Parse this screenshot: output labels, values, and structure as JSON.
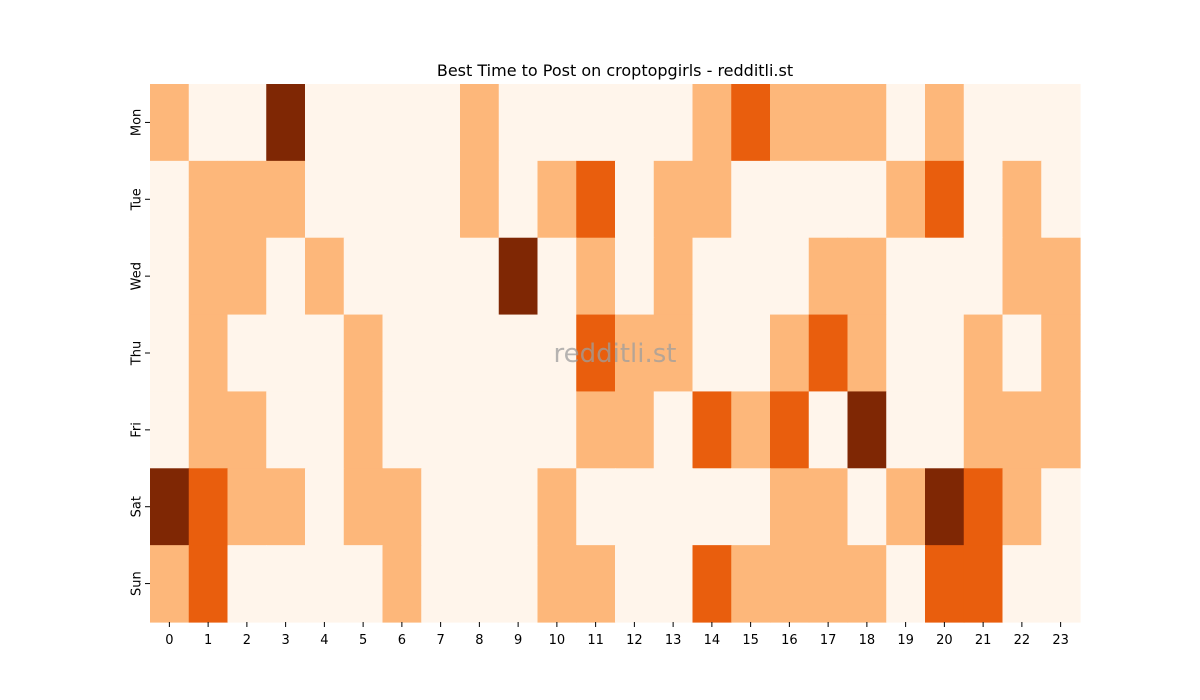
{
  "chart_data": {
    "type": "heatmap",
    "title": "Best Time to Post on croptopgirls - redditli.st",
    "watermark": "redditli.st",
    "x_labels": [
      "0",
      "1",
      "2",
      "3",
      "4",
      "5",
      "6",
      "7",
      "8",
      "9",
      "10",
      "11",
      "12",
      "13",
      "14",
      "15",
      "16",
      "17",
      "18",
      "19",
      "20",
      "21",
      "22",
      "23"
    ],
    "y_labels": [
      "Mon",
      "Tue",
      "Wed",
      "Thu",
      "Fri",
      "Sat",
      "Sun"
    ],
    "colormap": [
      "#fff5eb",
      "#fdb77a",
      "#e95e0d",
      "#7f2704"
    ],
    "values": [
      [
        1,
        0,
        0,
        3,
        0,
        0,
        0,
        0,
        1,
        0,
        0,
        0,
        0,
        0,
        1,
        2,
        1,
        1,
        1,
        0,
        1,
        0,
        0,
        0
      ],
      [
        0,
        1,
        1,
        1,
        0,
        0,
        0,
        0,
        1,
        0,
        1,
        2,
        0,
        1,
        1,
        0,
        0,
        0,
        0,
        1,
        2,
        0,
        1,
        0
      ],
      [
        0,
        1,
        1,
        0,
        1,
        0,
        0,
        0,
        0,
        3,
        0,
        1,
        0,
        1,
        0,
        0,
        0,
        1,
        1,
        0,
        0,
        0,
        1,
        1
      ],
      [
        0,
        1,
        0,
        0,
        0,
        1,
        0,
        0,
        0,
        0,
        0,
        2,
        1,
        1,
        0,
        0,
        1,
        2,
        1,
        0,
        0,
        1,
        0,
        1
      ],
      [
        0,
        1,
        1,
        0,
        0,
        1,
        0,
        0,
        0,
        0,
        0,
        1,
        1,
        0,
        2,
        1,
        2,
        0,
        3,
        0,
        0,
        1,
        1,
        1
      ],
      [
        3,
        2,
        1,
        1,
        0,
        1,
        1,
        0,
        0,
        0,
        1,
        0,
        0,
        0,
        0,
        0,
        1,
        1,
        0,
        1,
        3,
        2,
        1,
        0
      ],
      [
        1,
        2,
        0,
        0,
        0,
        0,
        1,
        0,
        0,
        0,
        1,
        1,
        0,
        0,
        2,
        1,
        1,
        1,
        1,
        0,
        2,
        2,
        0,
        0
      ]
    ]
  }
}
